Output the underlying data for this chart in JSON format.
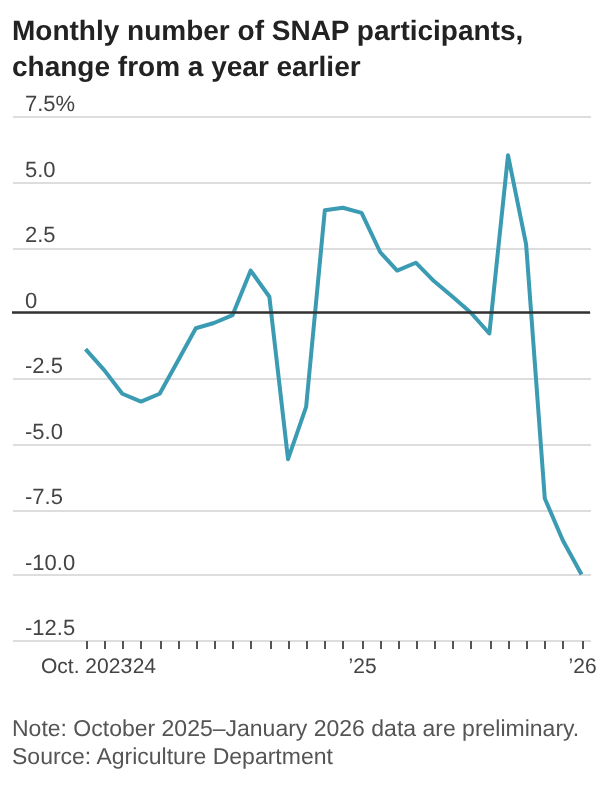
{
  "chart_data": {
    "type": "line",
    "title": "Monthly number of SNAP participants, change from a year earlier",
    "x": [
      "2023-10",
      "2023-11",
      "2023-12",
      "2024-01",
      "2024-02",
      "2024-03",
      "2024-04",
      "2024-05",
      "2024-06",
      "2024-07",
      "2024-08",
      "2024-09",
      "2024-10",
      "2024-11",
      "2024-12",
      "2025-01",
      "2025-02",
      "2025-03",
      "2025-04",
      "2025-05",
      "2025-06",
      "2025-07",
      "2025-08",
      "2025-09",
      "2025-10",
      "2025-11",
      "2025-12",
      "2026-01"
    ],
    "series": [
      {
        "color": "#3a9bb2",
        "values": [
          -1.4,
          -2.2,
          -3.1,
          -3.4,
          -3.1,
          -1.9,
          -0.6,
          -0.4,
          -0.1,
          1.6,
          0.6,
          -5.6,
          -3.6,
          3.9,
          4.0,
          3.8,
          2.3,
          1.6,
          1.9,
          1.2,
          0.6,
          0.0,
          -0.8,
          6.0,
          2.6,
          -7.1,
          -8.7,
          -10.0
        ]
      }
    ],
    "xlim": [
      "2023-06",
      "2026-01-15"
    ],
    "xticks": [
      {
        "value": "2023-10",
        "label": "Oct. 2023"
      },
      {
        "value": "2023-11",
        "label": null
      },
      {
        "value": "2023-12",
        "label": null
      },
      {
        "value": "2024-01",
        "label": "’24"
      },
      {
        "value": "2024-02",
        "label": null
      },
      {
        "value": "2024-03",
        "label": null
      },
      {
        "value": "2024-04",
        "label": null
      },
      {
        "value": "2024-05",
        "label": null
      },
      {
        "value": "2024-06",
        "label": null
      },
      {
        "value": "2024-07",
        "label": null
      },
      {
        "value": "2024-08",
        "label": null
      },
      {
        "value": "2024-09",
        "label": null
      },
      {
        "value": "2024-10",
        "label": null
      },
      {
        "value": "2024-11",
        "label": null
      },
      {
        "value": "2024-12",
        "label": null
      },
      {
        "value": "2025-01",
        "label": "’25"
      },
      {
        "value": "2025-02",
        "label": null
      },
      {
        "value": "2025-03",
        "label": null
      },
      {
        "value": "2025-04",
        "label": null
      },
      {
        "value": "2025-05",
        "label": null
      },
      {
        "value": "2025-06",
        "label": null
      },
      {
        "value": "2025-07",
        "label": null
      },
      {
        "value": "2025-08",
        "label": null
      },
      {
        "value": "2025-09",
        "label": null
      },
      {
        "value": "2025-10",
        "label": null
      },
      {
        "value": "2025-11",
        "label": null
      },
      {
        "value": "2025-12",
        "label": null
      },
      {
        "value": "2026-01",
        "label": "’26"
      }
    ],
    "ylim": [
      -12.5,
      7.5
    ],
    "yticks": [
      {
        "value": -12.5,
        "label": "-12.5"
      },
      {
        "value": -10,
        "label": "-10.0"
      },
      {
        "value": -7.5,
        "label": "-7.5"
      },
      {
        "value": -5,
        "label": "-5.0"
      },
      {
        "value": -2.5,
        "label": "-2.5"
      },
      {
        "value": 0,
        "label": "0"
      },
      {
        "value": 2.5,
        "label": "2.5"
      },
      {
        "value": 5,
        "label": "5.0"
      },
      {
        "value": 7.5,
        "label": "7.5%"
      }
    ],
    "grid": "y",
    "ref_lines": [
      {
        "axis": "y",
        "value": 0,
        "color": "#333333"
      }
    ],
    "annotations": [
      "Note: October 2025–January 2026 data are preliminary.",
      "Source: Agriculture Department"
    ]
  }
}
